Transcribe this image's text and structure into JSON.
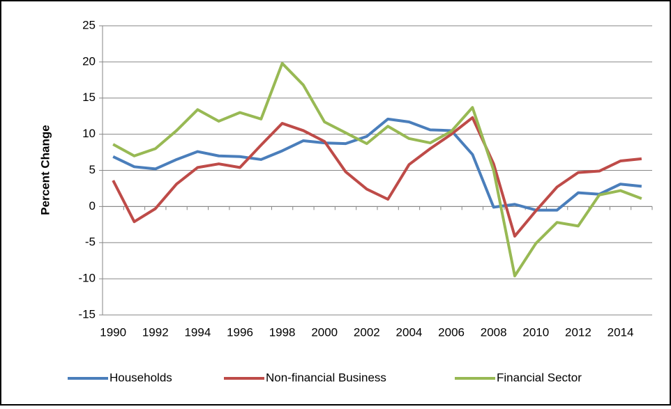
{
  "chart_data": {
    "type": "line",
    "y_label": "Percent Change",
    "categories": [
      "1990",
      null,
      "1992",
      null,
      "1994",
      null,
      "1996",
      null,
      "1998",
      null,
      "2000",
      null,
      "2002",
      null,
      "2004",
      null,
      "2006",
      null,
      "2008",
      null,
      "2010",
      null,
      "2012",
      null,
      "2014",
      null
    ],
    "series": [
      {
        "name": "Households",
        "color": "#4a7ebb",
        "values": [
          6.9,
          5.5,
          5.2,
          6.5,
          7.6,
          7.0,
          6.9,
          6.5,
          7.7,
          9.1,
          8.8,
          8.7,
          9.7,
          12.1,
          11.7,
          10.6,
          10.5,
          7.2,
          -0.1,
          0.3,
          -0.5,
          -0.5,
          1.9,
          1.7,
          3.1,
          2.8
        ]
      },
      {
        "name": "Non-financial Business",
        "color": "#be4b48",
        "values": [
          3.6,
          -2.1,
          -0.3,
          3.1,
          5.4,
          5.9,
          5.4,
          8.5,
          11.5,
          10.5,
          9.0,
          4.8,
          2.4,
          1.0,
          5.8,
          8.0,
          10.0,
          12.3,
          5.9,
          -4.1,
          -0.6,
          2.7,
          4.7,
          4.9,
          6.3,
          6.6
        ]
      },
      {
        "name": "Financial Sector",
        "color": "#98b954",
        "values": [
          8.6,
          7.0,
          8.0,
          10.5,
          13.4,
          11.8,
          13.0,
          12.1,
          19.8,
          16.8,
          11.7,
          10.2,
          8.7,
          11.1,
          9.4,
          8.8,
          10.4,
          13.7,
          5.0,
          -9.6,
          -5.1,
          -2.2,
          -2.7,
          1.6,
          2.2,
          1.1
        ]
      }
    ],
    "ylim": [
      -15,
      25
    ],
    "yticks": [
      -15,
      -10,
      -5,
      0,
      5,
      10,
      15,
      20,
      25
    ],
    "grid": true,
    "legend": "bottom"
  }
}
